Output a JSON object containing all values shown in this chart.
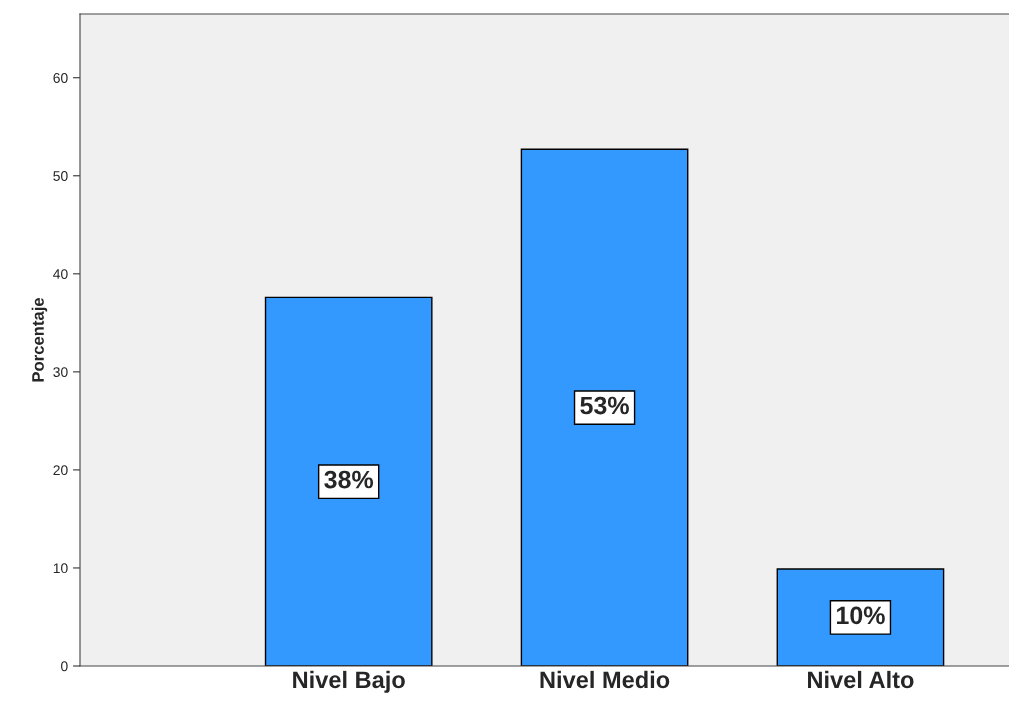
{
  "chart_data": {
    "type": "bar",
    "ylabel": "Porcentaje",
    "categories": [
      "Nivel Bajo",
      "Nivel Medio",
      "Nivel Alto"
    ],
    "values": [
      37.6,
      52.7,
      9.9
    ],
    "value_labels": [
      "38%",
      "53%",
      "10%"
    ],
    "color": "#3399ff",
    "ylim": [
      0,
      66.5
    ],
    "yticks": [
      0,
      10,
      20,
      30,
      40,
      50,
      60
    ],
    "grid": false,
    "legend": false
  }
}
